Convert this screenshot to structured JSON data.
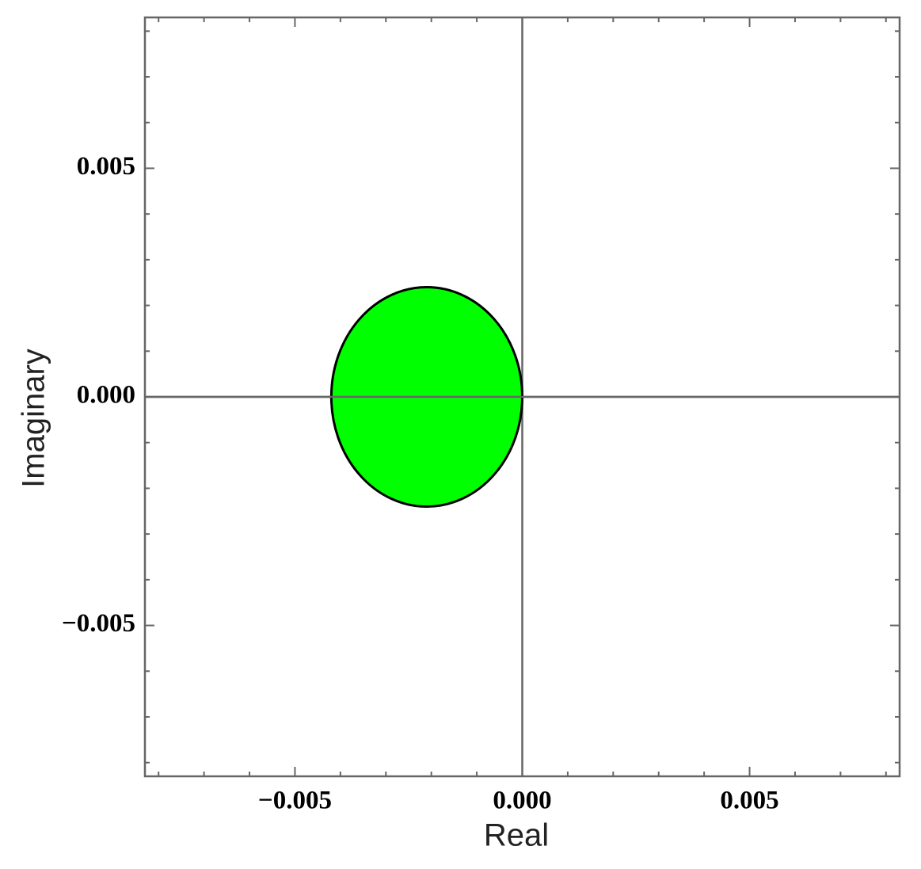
{
  "chart_data": {
    "type": "ellipse",
    "xlabel": "Real",
    "ylabel": "Imaginary",
    "xlim": [
      -0.0083,
      0.0083
    ],
    "ylim": [
      -0.0083,
      0.0083
    ],
    "xticks": [
      {
        "value": -0.005,
        "label": "−0.005"
      },
      {
        "value": 0,
        "label": "0.000"
      },
      0.005
    ],
    "yticks": [
      {
        "value": -0.005,
        "label": "−0.005"
      },
      {
        "value": 0,
        "label": "0.000"
      },
      0.005
    ],
    "xminorticks": [
      -0.008,
      -0.007,
      -0.006,
      -0.004,
      -0.003,
      -0.002,
      -0.001,
      0.001,
      0.002,
      0.003,
      0.004,
      0.006,
      0.007,
      0.008
    ],
    "yminorticks": [
      -0.008,
      -0.007,
      -0.006,
      -0.004,
      -0.003,
      -0.002,
      -0.001,
      0.001,
      0.002,
      0.003,
      0.004,
      0.006,
      0.007,
      0.008
    ],
    "axes_color": "#666666",
    "shapes": [
      {
        "center": [
          -0.0021,
          0
        ],
        "radii": [
          0.0021,
          0.0024
        ],
        "color": "#00ff00",
        "edgecolor": "#000000"
      }
    ]
  }
}
